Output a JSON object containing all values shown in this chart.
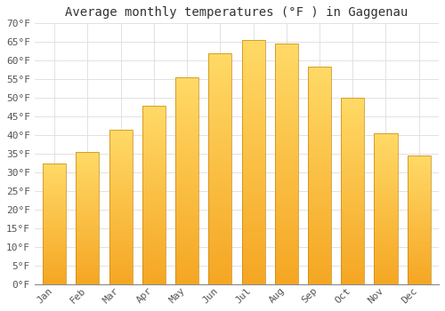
{
  "title": "Average monthly temperatures (°F ) in Gaggenau",
  "months": [
    "Jan",
    "Feb",
    "Mar",
    "Apr",
    "May",
    "Jun",
    "Jul",
    "Aug",
    "Sep",
    "Oct",
    "Nov",
    "Dec"
  ],
  "values": [
    32.5,
    35.5,
    41.5,
    48.0,
    55.5,
    62.0,
    65.5,
    64.5,
    58.5,
    50.0,
    40.5,
    34.5
  ],
  "bar_color_bottom": "#F5A623",
  "bar_color_top": "#FFD966",
  "bar_edge_color": "#C8860A",
  "ylim": [
    0,
    70
  ],
  "yticks": [
    0,
    5,
    10,
    15,
    20,
    25,
    30,
    35,
    40,
    45,
    50,
    55,
    60,
    65,
    70
  ],
  "title_fontsize": 10,
  "tick_fontsize": 8,
  "background_color": "#ffffff",
  "grid_color": "#dddddd"
}
